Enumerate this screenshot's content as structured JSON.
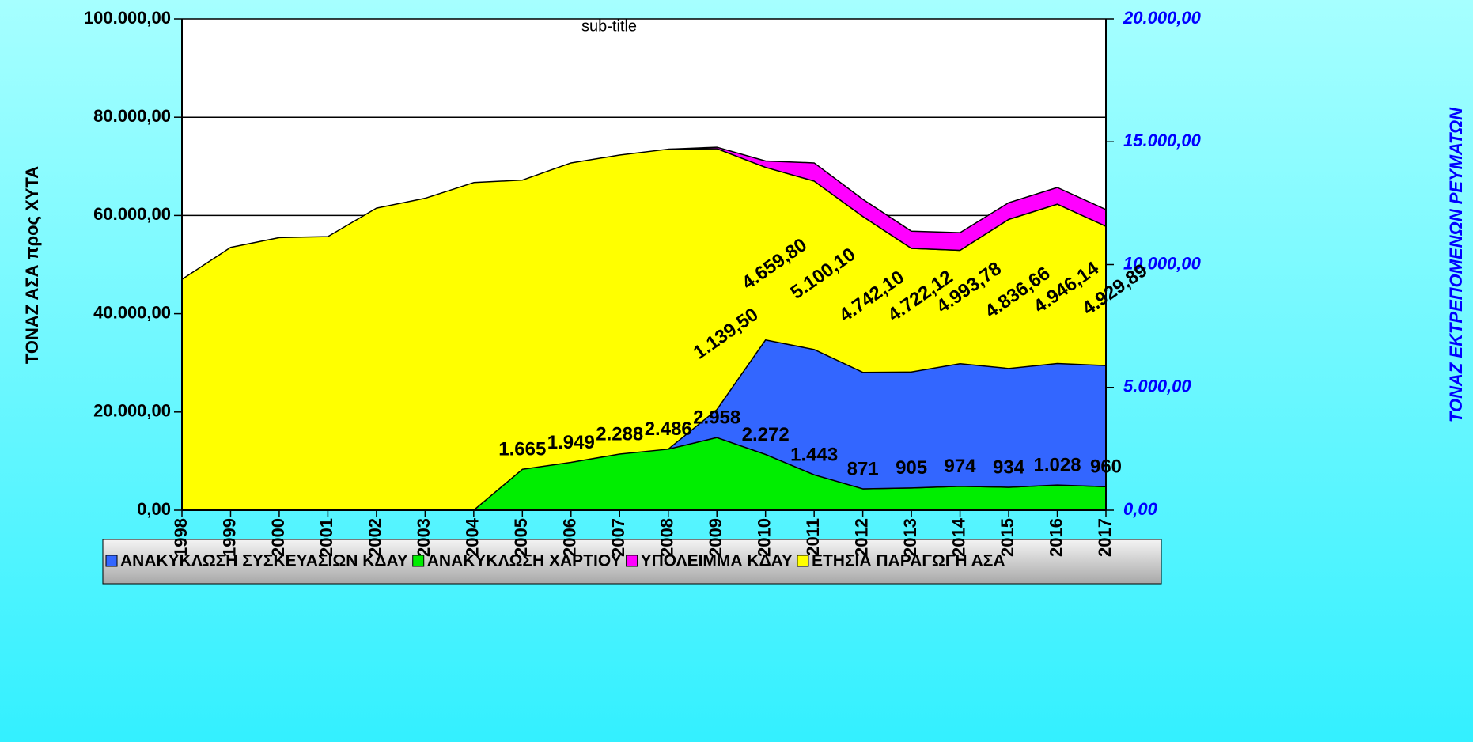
{
  "chart_data": {
    "type": "area",
    "stacked": true,
    "subtitle": "sub-title",
    "ylabel": "ΤΟΝΑΖ ΑΣΑ προς ΧΥΤΑ",
    "y2label": "ΤΟΝΑΖ ΕΚΤΡΕΠΟΜΕΝΩΝ ΡΕΥΜΑΤΩΝ",
    "categories": [
      "1998",
      "1999",
      "2000",
      "2001",
      "2002",
      "2003",
      "2004",
      "2005",
      "2006",
      "2007",
      "2008",
      "2009",
      "2010",
      "2011",
      "2012",
      "2013",
      "2014",
      "2015",
      "2016",
      "2017"
    ],
    "ylim": [
      0,
      100000
    ],
    "yticks": [
      {
        "value": 0,
        "label": "0,00"
      },
      {
        "value": 20000,
        "label": "20.000,00"
      },
      {
        "value": 40000,
        "label": "40.000,00"
      },
      {
        "value": 60000,
        "label": "60.000,00"
      },
      {
        "value": 80000,
        "label": "80.000,00"
      },
      {
        "value": 100000,
        "label": "100.000,00"
      }
    ],
    "y2lim": [
      0,
      20000
    ],
    "y2ticks": [
      {
        "value": 0,
        "label": "0,00"
      },
      {
        "value": 5000,
        "label": "5.000,00"
      },
      {
        "value": 10000,
        "label": "10.000,00"
      },
      {
        "value": 15000,
        "label": "15.000,00"
      },
      {
        "value": 20000,
        "label": "20.000,00"
      }
    ],
    "grid": true,
    "legend": "bottom",
    "series": [
      {
        "name": "ΑΝΑΚΥΚΛΩΣΗ ΣΥΣΚΕΥΑΣΙΩΝ ΚΔΑΥ",
        "color": "#3366ff",
        "axis": "y2",
        "values": [
          null,
          null,
          null,
          null,
          null,
          null,
          null,
          null,
          null,
          null,
          0,
          1139.5,
          4659.8,
          5100.1,
          4742.1,
          4722.12,
          4993.78,
          4836.66,
          4946.14,
          4929.89
        ],
        "value_labels": [
          null,
          null,
          null,
          null,
          null,
          null,
          null,
          null,
          null,
          null,
          null,
          "1.139,50",
          "4.659,80",
          "5.100,10",
          "4.742,10",
          "4.722,12",
          "4.993,78",
          "4.836,66",
          "4.946,14",
          "4.929,89"
        ]
      },
      {
        "name": "ΑΝΑΚΥΚΛΩΣΗ ΧΑΡΤΙΟΥ",
        "color": "#00ee00",
        "axis": "y2",
        "values": [
          null,
          null,
          null,
          null,
          null,
          null,
          0,
          1665,
          1949,
          2288,
          2486,
          2958,
          2272,
          1443,
          871,
          905,
          974,
          934,
          1028,
          960
        ],
        "value_labels": [
          null,
          null,
          null,
          null,
          null,
          null,
          null,
          "1.665",
          "1.949",
          "2.288",
          "2.486",
          "2.958",
          "2.272",
          "1.443",
          "871",
          "905",
          "974",
          "934",
          "1.028",
          "960"
        ]
      },
      {
        "name": "ΥΠΟΛΕΙΜΜΑ ΚΔΑΥ",
        "color": "#ff00ff",
        "values": [
          null,
          null,
          null,
          null,
          null,
          null,
          null,
          null,
          null,
          null,
          0,
          300,
          1300,
          3700,
          3500,
          3500,
          3600,
          3400,
          3400,
          3400
        ]
      },
      {
        "name": "ΕΤΗΣΙΑ ΠΑΡΑΓΩΓΗ ΑΣΑ",
        "color": "#ffff00",
        "values": [
          47000,
          53500,
          55500,
          55700,
          61500,
          63500,
          66700,
          67200,
          70700,
          72300,
          73500,
          73600,
          69800,
          67000,
          59800,
          53300,
          52900,
          59200,
          62300,
          57800
        ]
      }
    ]
  }
}
